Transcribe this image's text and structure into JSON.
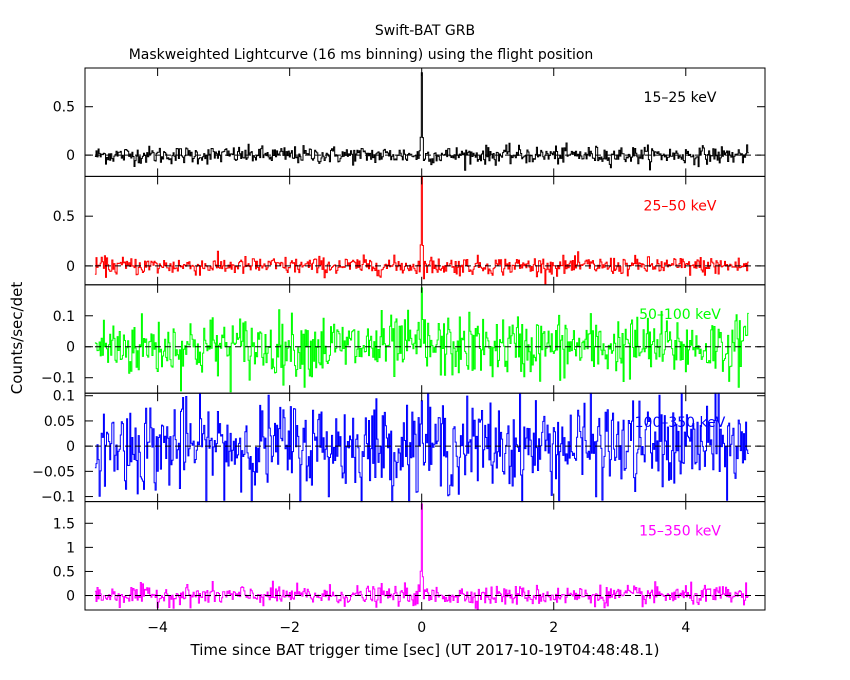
{
  "chart_data": {
    "type": "line",
    "title": "Swift-BAT GRB",
    "subtitle": "Maskweighted Lightcurve (16 ms binning) using the flight position",
    "xlabel": "Time since BAT trigger time [sec] (UT 2017-10-19T04:48:48.1)",
    "ylabel": "Counts/sec/det",
    "xlim": [
      -5.1,
      5.2
    ],
    "x_ticks": [
      -4,
      -2,
      0,
      2,
      4
    ],
    "x_tick_labels": [
      "−4",
      "−2",
      "0",
      "2",
      "4"
    ],
    "bin_width_s": 0.016,
    "data_range": [
      -4.95,
      4.95
    ],
    "zero_line": "dashed",
    "panels": [
      {
        "name": "15–25 keV",
        "color": "#000000",
        "ylim": [
          -0.22,
          0.9
        ],
        "y_ticks": [
          0,
          0.5
        ],
        "y_tick_labels": [
          "0",
          "0.5"
        ],
        "noise_sigma": 0.045,
        "peak": {
          "x": 0.0,
          "y": 0.85
        }
      },
      {
        "name": "25–50 keV",
        "color": "#ff0000",
        "ylim": [
          -0.19,
          0.9
        ],
        "y_ticks": [
          0,
          0.5
        ],
        "y_tick_labels": [
          "0",
          "0.5"
        ],
        "noise_sigma": 0.045,
        "peak": {
          "x": 0.0,
          "y": 0.9
        }
      },
      {
        "name": "50–100 keV",
        "color": "#00ff00",
        "ylim": [
          -0.15,
          0.2
        ],
        "y_ticks": [
          -0.1,
          0,
          0.1
        ],
        "y_tick_labels": [
          "−0.1",
          "0",
          "0.1"
        ],
        "noise_sigma": 0.05,
        "peak": {
          "x": 0.0,
          "y": 0.19
        }
      },
      {
        "name": "100–350 keV",
        "color": "#0000ff",
        "ylim": [
          -0.11,
          0.105
        ],
        "y_ticks": [
          -0.1,
          -0.05,
          0,
          0.05,
          0.1
        ],
        "y_tick_labels": [
          "−0.1",
          "−0.05",
          "0",
          "0.05",
          "0.1"
        ],
        "noise_sigma": 0.045,
        "peak": {
          "x": 0.0,
          "y": 0.09
        }
      },
      {
        "name": "15–350 keV",
        "color": "#ff00ff",
        "ylim": [
          -0.3,
          1.95
        ],
        "y_ticks": [
          0,
          0.5,
          1,
          1.5
        ],
        "y_tick_labels": [
          "0",
          "0.5",
          "1",
          "1.5"
        ],
        "noise_sigma": 0.1,
        "peak": {
          "x": 0.0,
          "y": 1.9
        }
      }
    ]
  }
}
